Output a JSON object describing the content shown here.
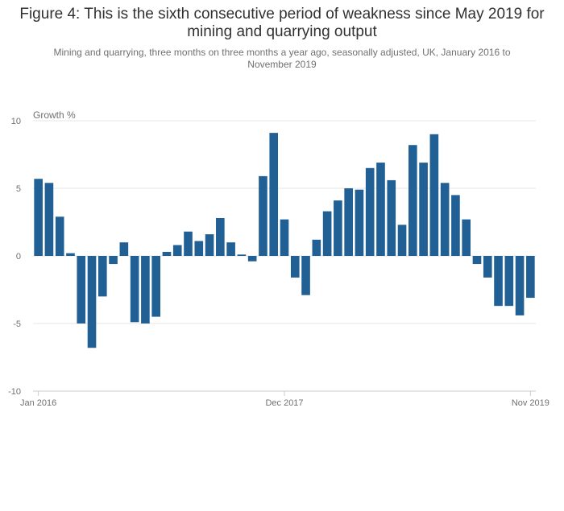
{
  "chart_data": {
    "type": "bar",
    "title": "Figure 4: This is the sixth consecutive period of weakness since May 2019 for mining and quarrying output",
    "subtitle": "Mining and quarrying, three months on three months a year ago, seasonally adjusted, UK, January 2016 to November 2019",
    "ylabel": "Growth %",
    "ylim": [
      -10,
      10
    ],
    "yticks": [
      10,
      5,
      0,
      -5,
      -10
    ],
    "xtick_labels": [
      {
        "index": 0,
        "label": "Jan 2016"
      },
      {
        "index": 23,
        "label": "Dec 2017"
      },
      {
        "index": 46,
        "label": "Nov 2019"
      }
    ],
    "bar_color": "#206095",
    "grid": true,
    "categories": [
      "Jan 2016",
      "Feb 2016",
      "Mar 2016",
      "Apr 2016",
      "May 2016",
      "Jun 2016",
      "Jul 2016",
      "Aug 2016",
      "Sep 2016",
      "Oct 2016",
      "Nov 2016",
      "Dec 2016",
      "Jan 2017",
      "Feb 2017",
      "Mar 2017",
      "Apr 2017",
      "May 2017",
      "Jun 2017",
      "Jul 2017",
      "Aug 2017",
      "Sep 2017",
      "Oct 2017",
      "Nov 2017",
      "Dec 2017",
      "Jan 2018",
      "Feb 2018",
      "Mar 2018",
      "Apr 2018",
      "May 2018",
      "Jun 2018",
      "Jul 2018",
      "Aug 2018",
      "Sep 2018",
      "Oct 2018",
      "Nov 2018",
      "Dec 2018",
      "Jan 2019",
      "Feb 2019",
      "Mar 2019",
      "Apr 2019",
      "May 2019",
      "Jun 2019",
      "Jul 2019",
      "Aug 2019",
      "Sep 2019",
      "Oct 2019",
      "Nov 2019"
    ],
    "values": [
      5.7,
      5.4,
      2.9,
      0.2,
      -5.0,
      -6.8,
      -3.0,
      -0.6,
      1.0,
      -4.9,
      -5.0,
      -4.5,
      0.3,
      0.8,
      1.8,
      1.1,
      1.6,
      2.8,
      1.0,
      0.1,
      -0.4,
      5.9,
      9.1,
      2.7,
      -1.6,
      -2.9,
      1.2,
      3.3,
      4.1,
      5.0,
      4.9,
      6.5,
      6.9,
      5.6,
      2.3,
      8.2,
      6.9,
      9.0,
      5.4,
      4.5,
      2.7,
      -0.6,
      -1.6,
      -3.7,
      -3.7,
      -4.4,
      -3.1
    ]
  }
}
